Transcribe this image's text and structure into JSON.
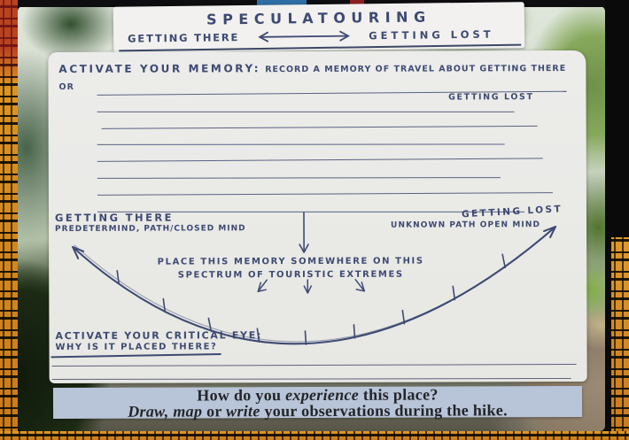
{
  "title_card": {
    "title": "SPECULATOURING",
    "left_end": "GETTING THERE",
    "right_end": "GETTING LOST"
  },
  "memory_section": {
    "prompt_heading": "ACTIVATE YOUR MEMORY:",
    "prompt_rest": "RECORD A MEMORY OF TRAVEL ABOUT GETTING THERE OR",
    "prompt_wrap": "GETTING LOST",
    "ruled_lines_count": 8
  },
  "spectrum": {
    "left_title": "GETTING THERE",
    "left_subtitle": "PREDETERMIND, PATH/CLOSED MIND",
    "right_title": "GETTING LOST",
    "right_subtitle": "UNKNOWN PATH OPEN MIND",
    "instruction_line1": "PLACE THIS MEMORY SOMEWHERE ON THIS",
    "instruction_line2": "SPECTRUM OF TOURISTIC EXTREMES",
    "tick_count": 9
  },
  "critical_section": {
    "prompt_line1": "ACTIVATE YOUR CRITICAL EYE:",
    "prompt_line2": "WHY IS IT PLACED THERE?",
    "ruled_lines_count": 2
  },
  "footer_strip": {
    "line1_normal1": "How do you ",
    "line1_italic": "experience",
    "line1_normal2": " this place?",
    "line2_italic1": "Draw, map",
    "line2_normal1": " or ",
    "line2_italic2": "write",
    "line2_normal2": " your observations during the hike."
  },
  "colors": {
    "ink": "#3e4a72",
    "card": "#eaeae7",
    "footer_bg": "#b8c4d7",
    "fabric_orange": "#d1891f"
  }
}
